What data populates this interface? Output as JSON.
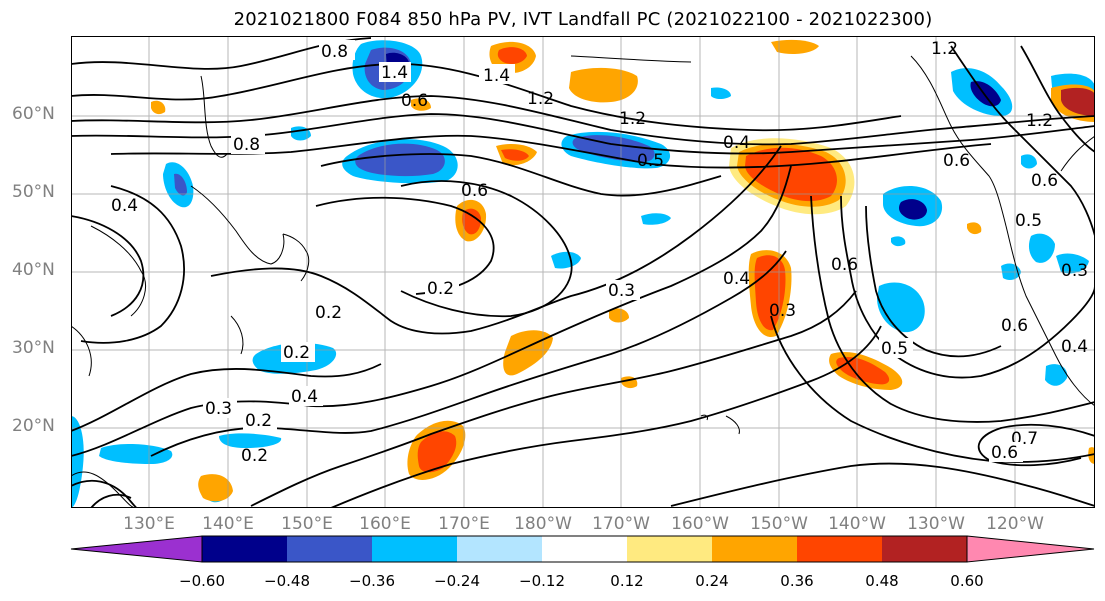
{
  "title": "2021021800 F084 850 hPa PV, IVT Landfall PC (2021022100 - 2021022300)",
  "map": {
    "lat_labels": [
      "60°N",
      "50°N",
      "40°N",
      "30°N",
      "20°N"
    ],
    "lon_labels": [
      "130°E",
      "140°E",
      "150°E",
      "160°E",
      "170°E",
      "180°W",
      "170°W",
      "160°W",
      "150°W",
      "140°W",
      "130°W",
      "120°W"
    ],
    "contour_labels": [
      "0.8",
      "1.4",
      "1.2",
      "1.4",
      "0.6",
      "0.8",
      "1.2",
      "0.4",
      "0.5",
      "0.6",
      "0.2",
      "0.3",
      "0.4",
      "0.3",
      "0.6",
      "0.2",
      "0.2",
      "0.4",
      "0.3",
      "0.2",
      "0.2",
      "0.5",
      "0.7",
      "0.6",
      "0.4",
      "1.2",
      "1.2",
      "0.6",
      "0.6",
      "0.5",
      "0.3",
      "0.6",
      "0.4"
    ]
  },
  "colorbar": {
    "colors": [
      "#9b30d0",
      "#00008b",
      "#3a56c8",
      "#00bfff",
      "#b3e5ff",
      "#ffffff",
      "#ffffff",
      "#ffea80",
      "#ffa500",
      "#ff4500",
      "#b22222",
      "#ff88b0"
    ],
    "tick_labels": [
      "−0.60",
      "−0.48",
      "−0.36",
      "−0.24",
      "−0.12",
      "0.12",
      "0.24",
      "0.36",
      "0.48",
      "0.60"
    ]
  }
}
